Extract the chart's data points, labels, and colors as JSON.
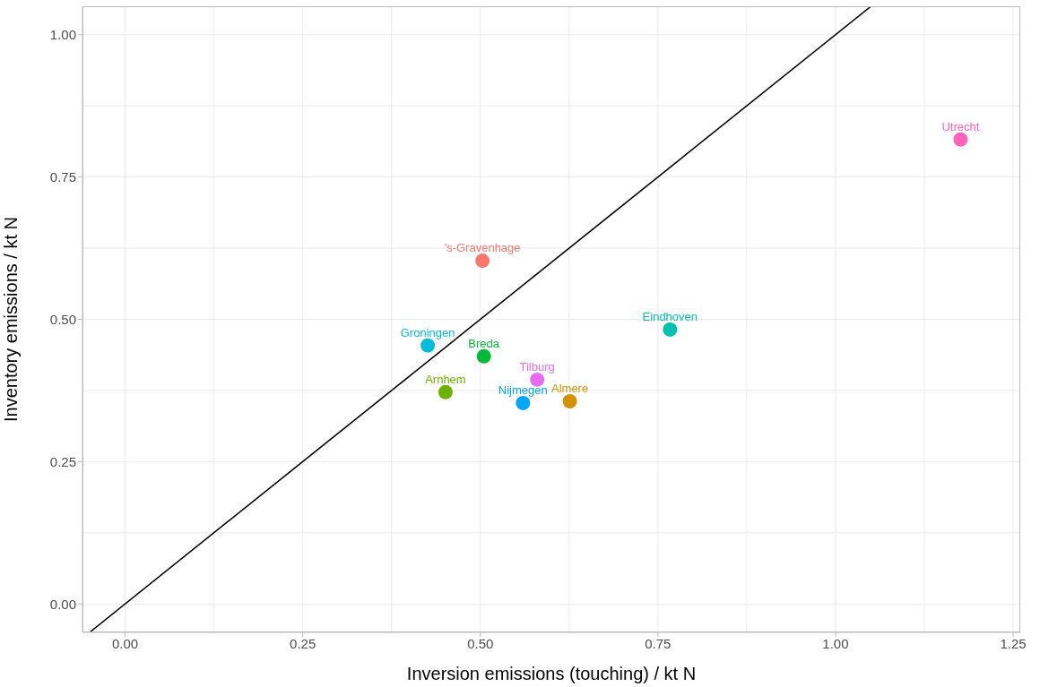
{
  "chart_data": {
    "type": "scatter",
    "xlabel": "Inversion emissions (touching) / kt N",
    "ylabel": "Inventory emissions / kt N",
    "xlim": [
      -0.06,
      1.26
    ],
    "ylim": [
      -0.05,
      1.05
    ],
    "xticks": [
      {
        "value": 0,
        "label": "0.00"
      },
      {
        "value": 0.25,
        "label": "0.25"
      },
      {
        "value": 0.5,
        "label": "0.50"
      },
      {
        "value": 0.75,
        "label": "0.75"
      },
      {
        "value": 1,
        "label": "1.00"
      },
      {
        "value": 1.25,
        "label": "1.25"
      }
    ],
    "yticks": [
      {
        "value": 0,
        "label": "0.00"
      },
      {
        "value": 0.25,
        "label": "0.25"
      },
      {
        "value": 0.5,
        "label": "0.50"
      },
      {
        "value": 0.75,
        "label": "0.75"
      },
      {
        "value": 1,
        "label": "1.00"
      }
    ],
    "grid": true,
    "legend": false,
    "series": [
      {
        "type": "line",
        "color": "#000000",
        "line_style": "solid",
        "marker": "none",
        "x": [
          -0.05,
          1.05
        ],
        "values": [
          -0.05,
          1.05
        ]
      },
      {
        "name": "'s-Gravenhage",
        "color": "#F8766D",
        "marker": "circle",
        "x": [
          0.503
        ],
        "values": [
          0.603
        ]
      },
      {
        "name": "Almere",
        "color": "#D39200",
        "marker": "circle",
        "x": [
          0.626
        ],
        "values": [
          0.356
        ]
      },
      {
        "name": "Arnhem",
        "color": "#6BB100",
        "marker": "circle",
        "x": [
          0.451
        ],
        "values": [
          0.372
        ]
      },
      {
        "name": "Breda",
        "color": "#00BA38",
        "marker": "circle",
        "x": [
          0.505
        ],
        "values": [
          0.435
        ]
      },
      {
        "name": "Eindhoven",
        "color": "#00C0AF",
        "marker": "circle",
        "x": [
          0.767
        ],
        "values": [
          0.482
        ]
      },
      {
        "name": "Groningen",
        "color": "#00BCD8",
        "marker": "circle",
        "x": [
          0.426
        ],
        "values": [
          0.454
        ]
      },
      {
        "name": "Nijmegen",
        "color": "#00A5FF",
        "marker": "circle",
        "x": [
          0.56
        ],
        "values": [
          0.353
        ]
      },
      {
        "name": "Tilburg",
        "color": "#E76BF3",
        "marker": "circle",
        "x": [
          0.58
        ],
        "values": [
          0.394
        ]
      },
      {
        "name": "Utrecht",
        "color": "#FF62BC",
        "marker": "circle",
        "x": [
          1.176
        ],
        "values": [
          0.816
        ]
      }
    ]
  }
}
